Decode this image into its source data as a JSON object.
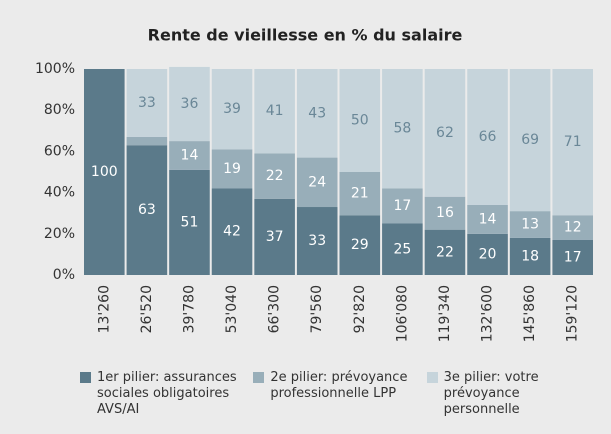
{
  "chart_data": {
    "type": "stacked_bar",
    "title": "Rente de vieillesse en % du salaire",
    "categories": [
      "13'260",
      "26'520",
      "39'780",
      "53'040",
      "66'300",
      "79'560",
      "92'820",
      "106'080",
      "119'340",
      "132'600",
      "145'860",
      "159'120"
    ],
    "series": [
      {
        "name": "1er pilier: assurances sociales obligatoires AVS/AI",
        "color": "#5b7a8a",
        "label_color": "#ffffff",
        "values": [
          100,
          63,
          51,
          42,
          37,
          33,
          29,
          25,
          22,
          20,
          18,
          17
        ]
      },
      {
        "name": "2e pilier: prévoyance professionnelle LPP",
        "color": "#98aeb9",
        "label_color": "#ffffff",
        "values": [
          0,
          4,
          14,
          19,
          22,
          24,
          21,
          17,
          16,
          14,
          13,
          12
        ]
      },
      {
        "name": "3e pilier: votre prévoyance personnelle",
        "color": "#c6d4db",
        "label_color": "#6a8797",
        "values": [
          0,
          33,
          36,
          39,
          41,
          43,
          50,
          58,
          62,
          66,
          69,
          71
        ]
      }
    ],
    "ylim": [
      0,
      100
    ],
    "yticks": [
      {
        "value": 0,
        "label": "0%"
      },
      {
        "value": 20,
        "label": "20%"
      },
      {
        "value": 40,
        "label": "40%"
      },
      {
        "value": 60,
        "label": "60%"
      },
      {
        "value": 80,
        "label": "80%"
      },
      {
        "value": 100,
        "label": "100%"
      }
    ]
  }
}
